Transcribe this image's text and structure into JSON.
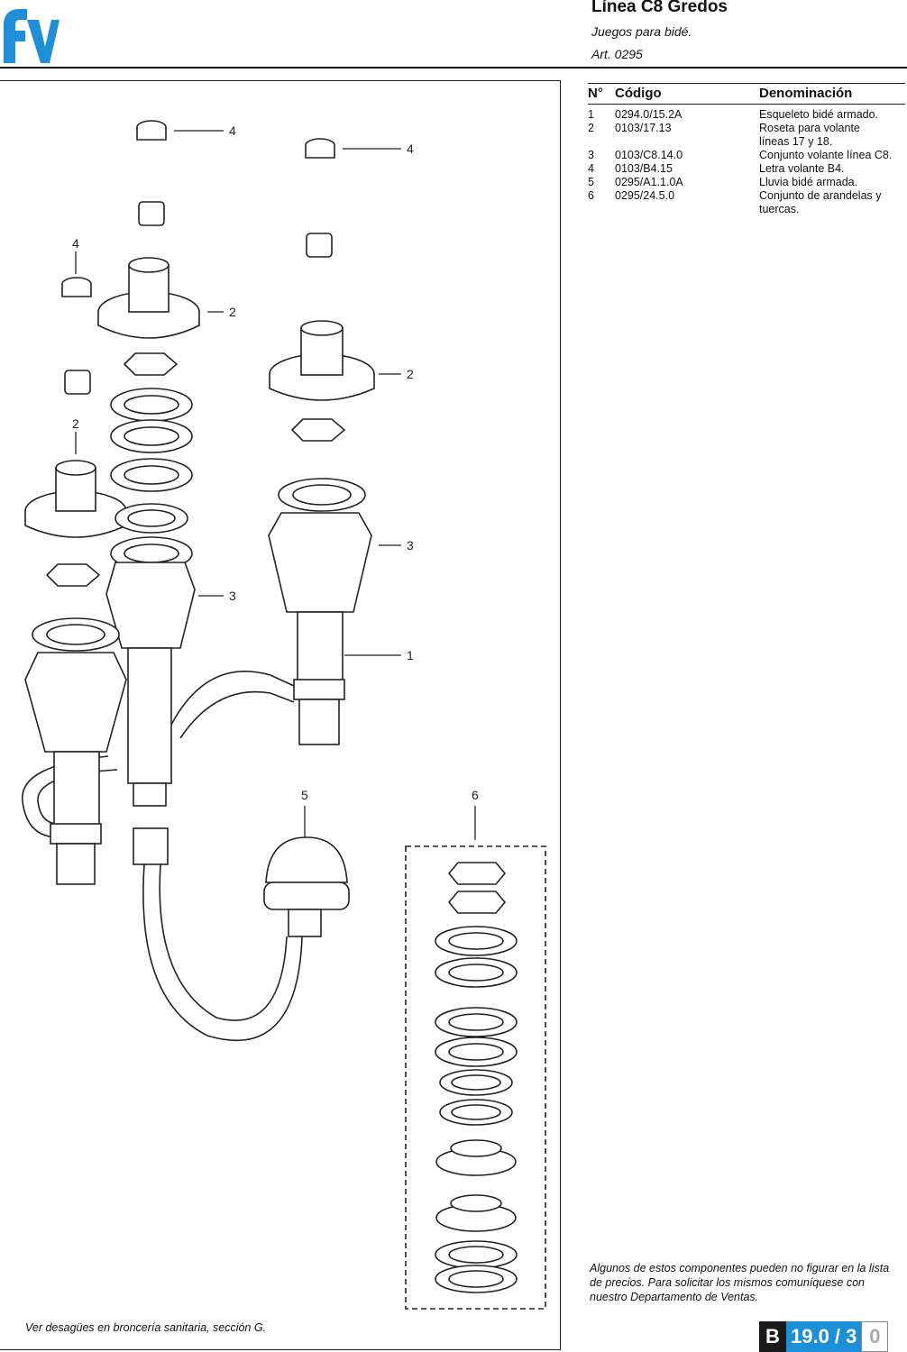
{
  "header": {
    "brand_logo": "fv",
    "title": "Línea C8 Gredos",
    "subtitle": "Juegos para bidé.",
    "article": "Art. 0295"
  },
  "parts_table": {
    "headers": [
      "N°",
      "Código",
      "Denominación"
    ],
    "rows": [
      {
        "n": "1",
        "code": "0294.0/15.2A",
        "name": "Esqueleto bidé armado."
      },
      {
        "n": "2",
        "code": "0103/17.13",
        "name": "Roseta para volante líneas 17 y 18."
      },
      {
        "n": "3",
        "code": "0103/C8.14.0",
        "name": "Conjunto volante línea C8."
      },
      {
        "n": "4",
        "code": "0103/B4.15",
        "name": "Letra volante B4."
      },
      {
        "n": "5",
        "code": "0295/A1.1.0A",
        "name": "Lluvia bidé armada."
      },
      {
        "n": "6",
        "code": "0295/24.5.0",
        "name": "Conjunto de arandelas y tuercas."
      }
    ]
  },
  "callouts": [
    "4",
    "4",
    "4",
    "2",
    "2",
    "2",
    "3",
    "3",
    "1",
    "5",
    "6"
  ],
  "note": "Algunos de estos componentes pueden no figurar en la lista de precios. Para solicitar los mismos comuníquese con nuestro Departamento de Ventas.",
  "footer_note": "Ver desagües en broncería sanitaria, sección G.",
  "page_number": {
    "section": "B",
    "page": "19.0 / 3",
    "suffix": "0"
  },
  "colors": {
    "accent": "#1d8fd8",
    "logo": "#1d8fd8"
  }
}
